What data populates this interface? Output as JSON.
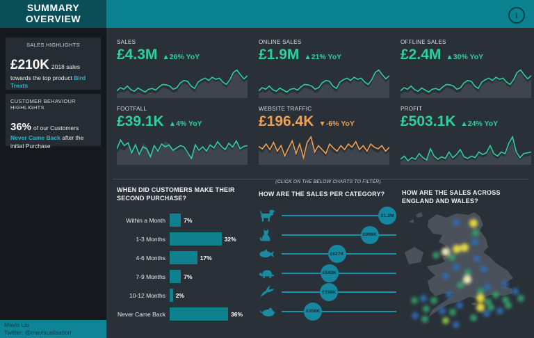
{
  "header": {
    "title_line1": "SUMMARY",
    "title_line2": "OVERVIEW",
    "info_icon": "i"
  },
  "sidebar": {
    "sales_highlights": {
      "title": "SALES HIGHLIGHTS",
      "value": "£210K",
      "text_before": "2018 sales towards the top product ",
      "highlight": "Bird Treats"
    },
    "behaviour_highlights": {
      "title": "CUSTOMER BEHAVIOUR HIGHLIGHTS",
      "value": "36%",
      "text_before": "of our Customers ",
      "highlight": "Never Came Back",
      "text_after": " after the initial Purchase"
    },
    "footer": {
      "name": "Mavis Liu",
      "twitter": "Twitter: @mavisualisation"
    }
  },
  "filter_hint": "(CLICK ON THE BELOW CHARTS TO FILTER)",
  "kpis": [
    {
      "label": "SALES",
      "value": "£4.3M",
      "delta": "▲26% YoY",
      "trend": "up"
    },
    {
      "label": "ONLINE SALES",
      "value": "£1.9M",
      "delta": "▲21% YoY",
      "trend": "up"
    },
    {
      "label": "OFFLINE SALES",
      "value": "£2.4M",
      "delta": "▲30% YoY",
      "trend": "up"
    },
    {
      "label": "FOOTFALL",
      "value": "£39.1K",
      "delta": "▲4% YoY",
      "trend": "up"
    },
    {
      "label": "WEBSITE TRAFFIC",
      "value": "£196.4K",
      "delta": "▼-6% YoY",
      "trend": "down"
    },
    {
      "label": "PROFIT",
      "value": "£503.1K",
      "delta": "▲24% YoY",
      "trend": "up"
    }
  ],
  "colors": {
    "positive": "#2fcf9e",
    "negative": "#f0a052",
    "accent_teal": "#0f808e",
    "cyan_text": "#2bb6c9",
    "header": "#0b8290",
    "header_box": "#0a4f58",
    "sidebar_bg": "#15191e",
    "card_bg": "#252c33",
    "main_bg": "#2a3038",
    "spark_area": "#3e454e"
  },
  "chart_data": [
    {
      "name": "second_purchase",
      "type": "bar",
      "title": "WHEN DID CUSTOMERS MAKE THEIR SECOND PURCHASE?",
      "categories": [
        "Within a Month",
        "1-3 Months",
        "4-6 Months",
        "7-9 Months",
        "10-12 Months",
        "Never Came Back"
      ],
      "values": [
        7,
        32,
        17,
        7,
        2,
        36
      ],
      "value_labels": [
        "7%",
        "32%",
        "17%",
        "7%",
        "2%",
        "36%"
      ],
      "unit": "%",
      "xlim": [
        0,
        40
      ],
      "orientation": "horizontal",
      "bar_color": "#0f808e"
    },
    {
      "name": "sales_per_category",
      "type": "lollipop",
      "title": "HOW ARE THE SALES PER CATEGORY?",
      "categories": [
        "Dog",
        "Cat",
        "Fish",
        "Tortoise",
        "Bird",
        "Mouse"
      ],
      "values_k": [
        1200,
        998,
        627,
        542,
        536,
        356
      ],
      "labels": [
        "£1.2M",
        "£998K",
        "£627K",
        "£542K",
        "£536K",
        "£356K"
      ],
      "xmax_k": 1300
    },
    {
      "name": "sales_map",
      "type": "heatmap",
      "title": "HOW ARE THE SALES ACROSS ENGLAND AND WALES?",
      "palette": {
        "b": "#2e6db4",
        "g": "#33a06c",
        "l": "#8fcf3c",
        "y": "#f2e43f",
        "w": "#fbf9c4"
      },
      "points": [
        [
          78,
          17,
          "b"
        ],
        [
          103,
          18,
          "y"
        ],
        [
          106,
          32,
          "g"
        ],
        [
          105,
          45,
          "b"
        ],
        [
          90,
          53,
          "y"
        ],
        [
          79,
          55,
          "y"
        ],
        [
          63,
          59,
          "w"
        ],
        [
          49,
          64,
          "g"
        ],
        [
          72,
          67,
          "g"
        ],
        [
          108,
          69,
          "b"
        ],
        [
          78,
          81,
          "b"
        ],
        [
          118,
          84,
          "b"
        ],
        [
          95,
          89,
          "g"
        ],
        [
          63,
          94,
          "b"
        ],
        [
          94,
          99,
          "w"
        ],
        [
          84,
          107,
          "g"
        ],
        [
          123,
          110,
          "b"
        ],
        [
          148,
          106,
          "b"
        ],
        [
          113,
          116,
          "g"
        ],
        [
          68,
          121,
          "b"
        ],
        [
          135,
          121,
          "g"
        ],
        [
          113,
          126,
          "y"
        ],
        [
          124,
          131,
          "g"
        ],
        [
          149,
          128,
          "g"
        ],
        [
          163,
          116,
          "b"
        ],
        [
          171,
          126,
          "g"
        ],
        [
          83,
          136,
          "b"
        ],
        [
          46,
          129,
          "g"
        ],
        [
          31,
          126,
          "b"
        ],
        [
          18,
          129,
          "g"
        ],
        [
          35,
          141,
          "g"
        ],
        [
          58,
          144,
          "b"
        ],
        [
          73,
          146,
          "g"
        ],
        [
          113,
          139,
          "y"
        ],
        [
          128,
          139,
          "g"
        ],
        [
          141,
          144,
          "b"
        ],
        [
          153,
          136,
          "g"
        ],
        [
          19,
          151,
          "b"
        ],
        [
          33,
          156,
          "g"
        ],
        [
          63,
          158,
          "l"
        ],
        [
          78,
          164,
          "b"
        ],
        [
          103,
          154,
          "g"
        ],
        [
          122,
          148,
          "b"
        ]
      ]
    },
    {
      "name": "kpi_sparklines",
      "type": "line",
      "assignment": [
        "a",
        "a",
        "a",
        "b",
        "c",
        "d"
      ],
      "shapes": {
        "a": {
          "line": [
            18,
            26,
            22,
            30,
            21,
            17,
            25,
            20,
            15,
            22,
            24,
            20,
            28,
            34,
            33,
            30,
            22,
            26,
            38,
            44,
            42,
            30,
            24,
            40,
            46,
            50,
            44,
            52,
            47,
            50,
            40,
            34,
            46,
            64,
            70,
            58,
            48,
            56
          ],
          "area": [
            10,
            16,
            13,
            20,
            12,
            9,
            15,
            11,
            7,
            13,
            15,
            11,
            18,
            26,
            24,
            20,
            13,
            16,
            30,
            36,
            34,
            22,
            15,
            32,
            38,
            42,
            36,
            46,
            40,
            44,
            32,
            26,
            38,
            58,
            64,
            50,
            40,
            48
          ]
        },
        "b": {
          "line": [
            40,
            62,
            48,
            55,
            30,
            50,
            26,
            45,
            40,
            20,
            48,
            34,
            52,
            45,
            50,
            36,
            42,
            48,
            45,
            30,
            16,
            50,
            36,
            45,
            34,
            50,
            42,
            58,
            46,
            38,
            54,
            44,
            60,
            40,
            46,
            48
          ],
          "area": [
            30,
            40,
            35,
            46,
            25,
            38,
            20,
            55,
            45,
            28,
            40,
            30,
            44,
            60,
            52,
            40,
            34,
            40,
            38,
            26,
            14,
            42,
            30,
            38,
            28,
            42,
            36,
            50,
            40,
            32,
            46,
            38,
            52,
            34,
            40,
            42
          ]
        },
        "c": {
          "line": [
            46,
            40,
            52,
            38,
            56,
            34,
            48,
            22,
            42,
            60,
            28,
            52,
            18,
            56,
            70,
            32,
            48,
            38,
            28,
            52,
            42,
            34,
            48,
            38,
            52,
            44,
            58,
            38,
            48,
            34,
            52,
            44,
            40,
            48,
            34,
            44
          ],
          "area": [
            36,
            30,
            42,
            28,
            46,
            26,
            38,
            16,
            32,
            50,
            20,
            42,
            12,
            46,
            60,
            24,
            38,
            30,
            20,
            42,
            32,
            26,
            38,
            30,
            42,
            34,
            48,
            30,
            38,
            26,
            42,
            34,
            30,
            38,
            26,
            34
          ]
        },
        "d": {
          "line": [
            14,
            22,
            10,
            18,
            14,
            28,
            18,
            12,
            40,
            22,
            14,
            20,
            16,
            32,
            18,
            26,
            38,
            20,
            16,
            22,
            18,
            32,
            26,
            30,
            48,
            28,
            22,
            32,
            28,
            54,
            70,
            32,
            18,
            28,
            30,
            32
          ],
          "area": [
            8,
            14,
            6,
            12,
            8,
            20,
            12,
            7,
            30,
            15,
            8,
            13,
            10,
            24,
            11,
            18,
            28,
            13,
            10,
            15,
            11,
            24,
            18,
            22,
            38,
            20,
            15,
            24,
            20,
            44,
            58,
            24,
            12,
            20,
            22,
            24
          ]
        }
      }
    }
  ]
}
